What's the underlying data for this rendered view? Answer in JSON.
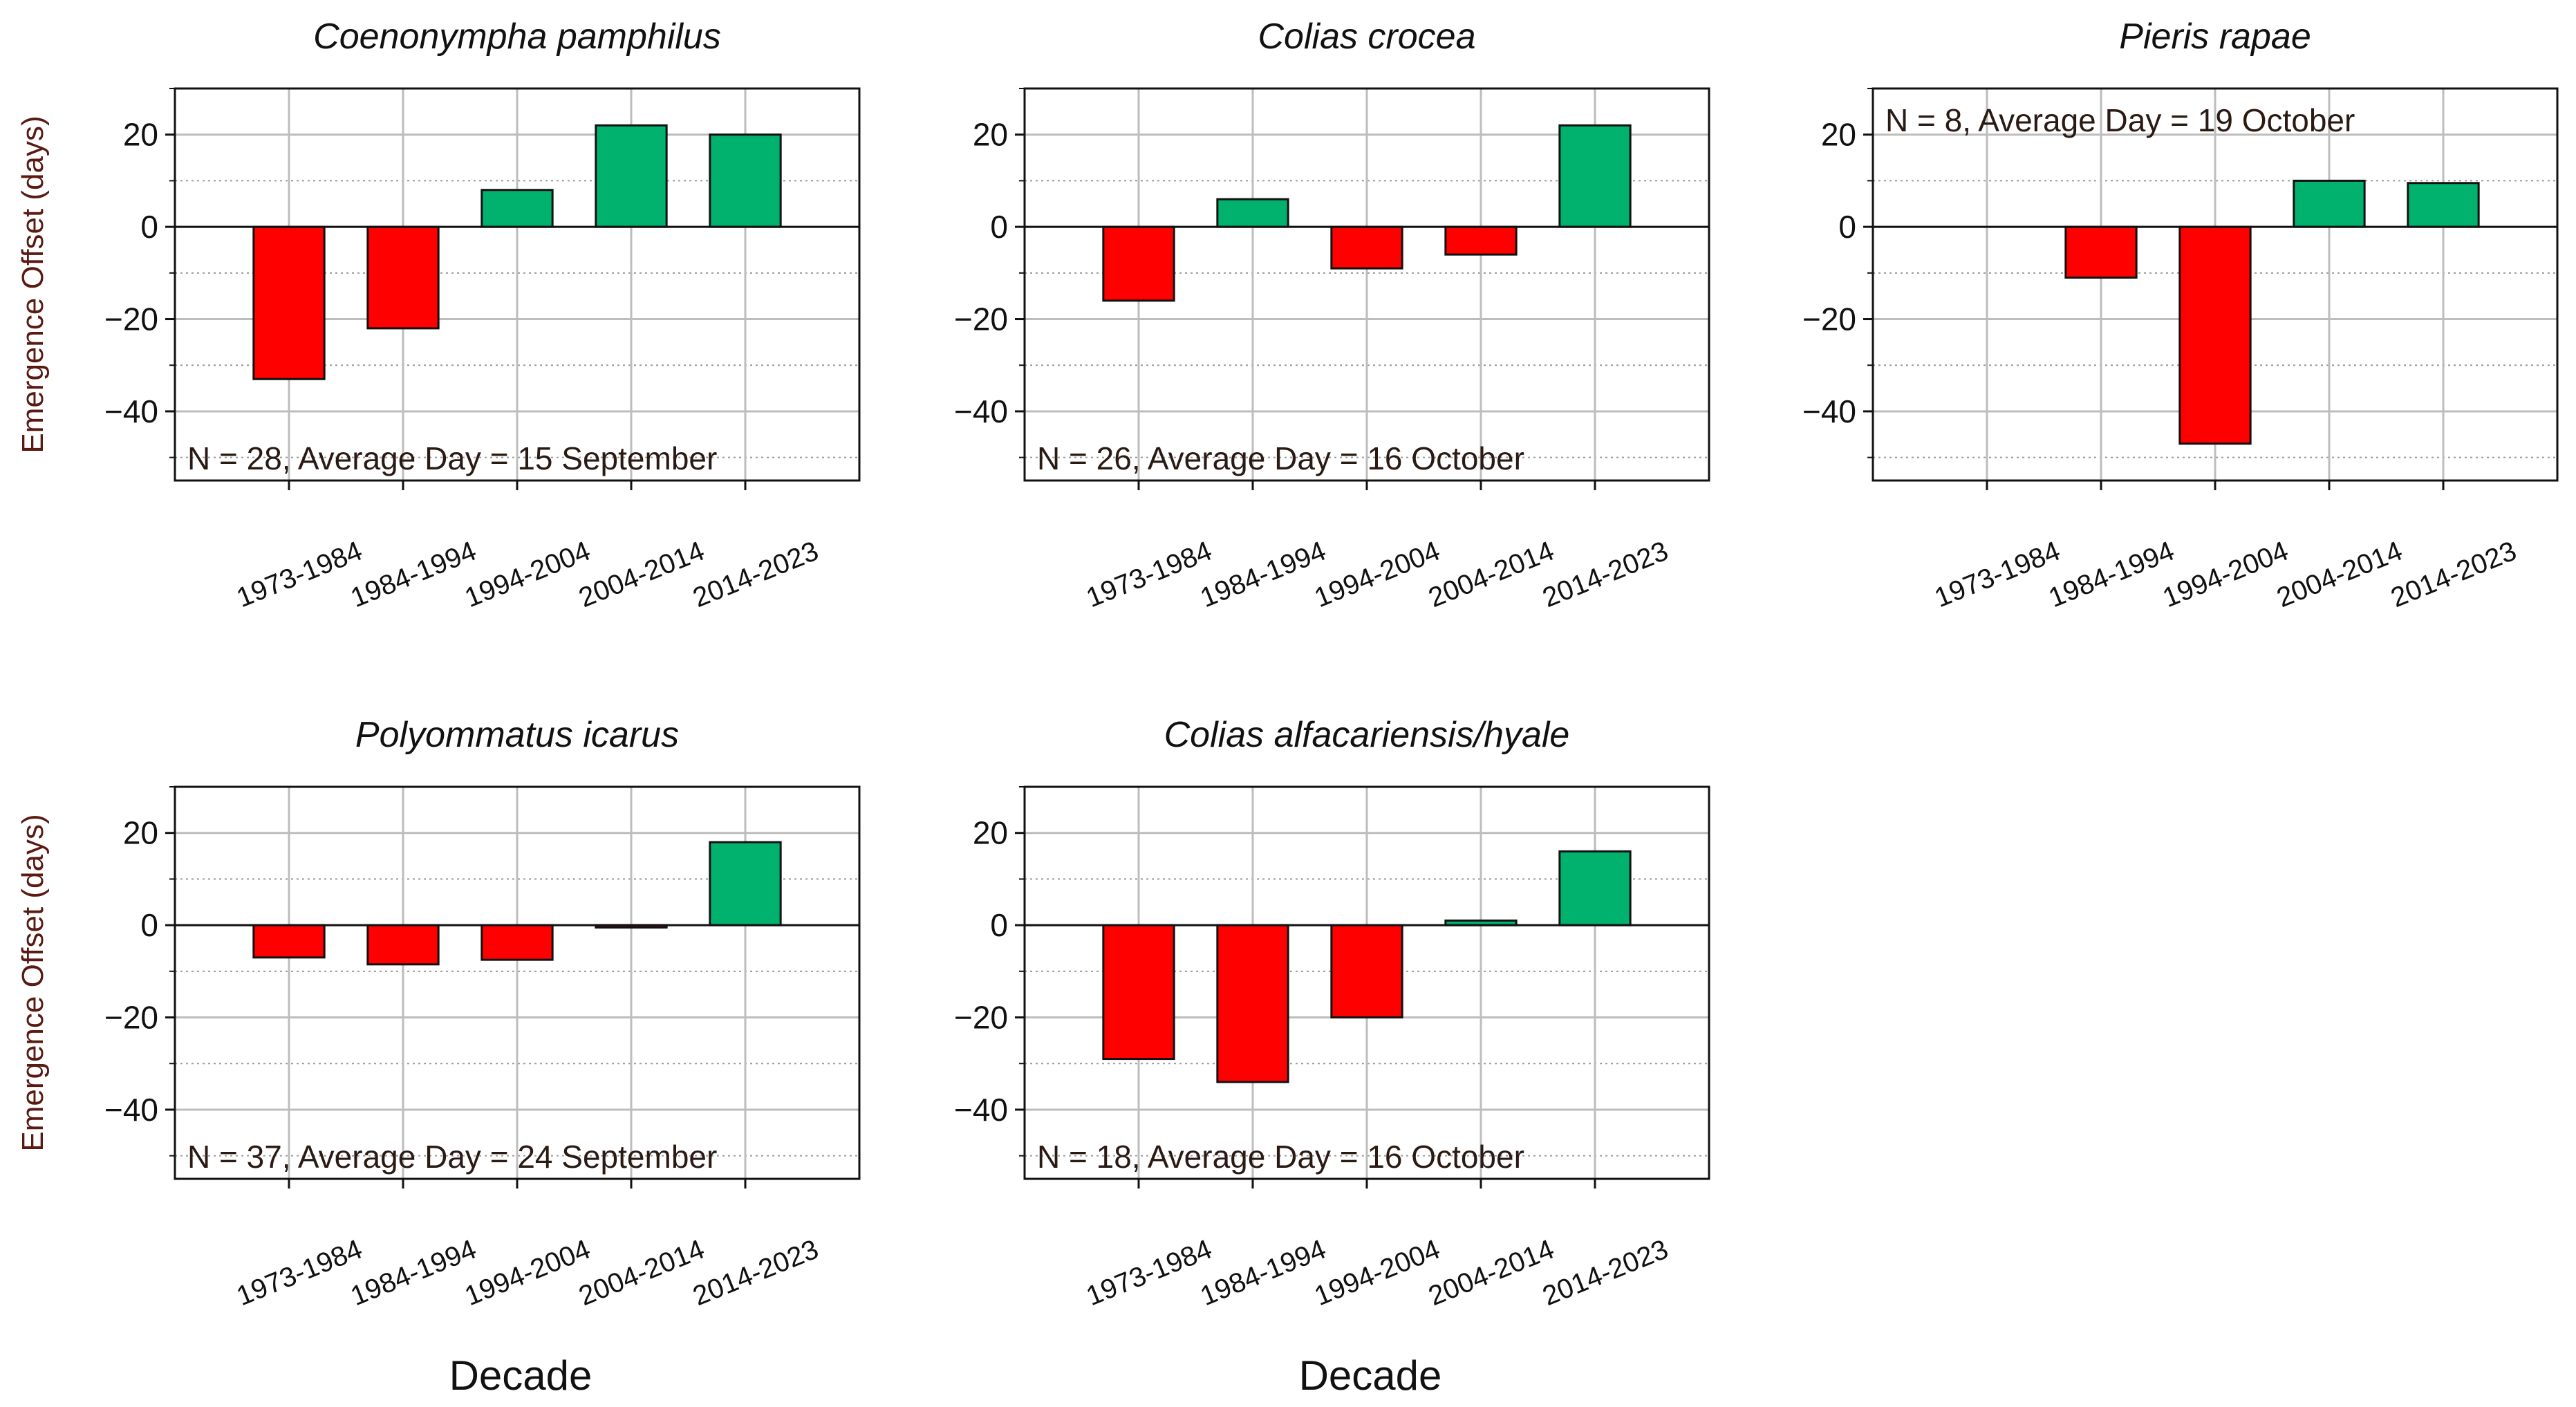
{
  "colors": {
    "positive": "#00b26d",
    "negative": "#ff0000",
    "ylabel": "#5a1a12"
  },
  "shared": {
    "ylabel": "Emergence Offset (days)",
    "xlabel": "Decade",
    "yticks": [
      20,
      0,
      -20,
      -40
    ],
    "ylim": [
      -55,
      30
    ]
  },
  "chart_data": [
    {
      "type": "bar",
      "title": "Coenonympha pamphilus",
      "categories": [
        "1973-1984",
        "1984-1994",
        "1994-2004",
        "2004-2014",
        "2014-2023"
      ],
      "values": [
        -33,
        -22,
        8,
        22,
        20
      ],
      "annotation": "N = 28, Average Day = 15 September",
      "annotation_pos": "bottom-left",
      "ylim": [
        -55,
        30
      ],
      "ylabel": "Emergence Offset (days)",
      "xlabel": ""
    },
    {
      "type": "bar",
      "title": "Colias crocea",
      "categories": [
        "1973-1984",
        "1984-1994",
        "1994-2004",
        "2004-2014",
        "2014-2023"
      ],
      "values": [
        -16,
        6,
        -9,
        -6,
        22
      ],
      "annotation": "N = 26, Average Day = 16 October",
      "annotation_pos": "bottom-left",
      "ylim": [
        -55,
        30
      ],
      "ylabel": "",
      "xlabel": ""
    },
    {
      "type": "bar",
      "title": "Pieris rapae",
      "categories": [
        "1973-1984",
        "1984-1994",
        "1994-2004",
        "2004-2014",
        "2014-2023"
      ],
      "values": [
        0,
        -11,
        -47,
        10,
        9.5
      ],
      "annotation": "N = 8, Average Day = 19 October",
      "annotation_pos": "top-left",
      "ylim": [
        -55,
        30
      ],
      "ylabel": "",
      "xlabel": ""
    },
    {
      "type": "bar",
      "title": "Polyommatus icarus",
      "categories": [
        "1973-1984",
        "1984-1994",
        "1994-2004",
        "2004-2014",
        "2014-2023"
      ],
      "values": [
        -7,
        -8.5,
        -7.5,
        -0.5,
        18
      ],
      "annotation": "N = 37, Average Day = 24 September",
      "annotation_pos": "bottom-left",
      "ylim": [
        -55,
        30
      ],
      "ylabel": "Emergence Offset (days)",
      "xlabel": "Decade"
    },
    {
      "type": "bar",
      "title": "Colias alfacariensis/hyale",
      "categories": [
        "1973-1984",
        "1984-1994",
        "1994-2004",
        "2004-2014",
        "2014-2023"
      ],
      "values": [
        -29,
        -34,
        -20,
        1,
        16
      ],
      "annotation": "N = 18, Average Day = 16 October",
      "annotation_pos": "bottom-left",
      "ylim": [
        -55,
        30
      ],
      "ylabel": "",
      "xlabel": "Decade"
    }
  ]
}
